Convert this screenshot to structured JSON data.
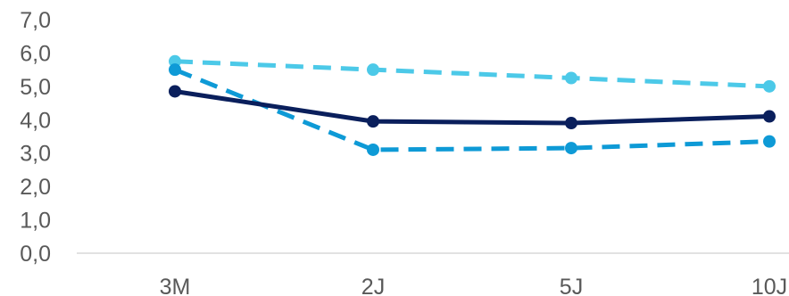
{
  "chart_data": {
    "type": "line",
    "categories": [
      "3M",
      "2J",
      "5J",
      "10J"
    ],
    "y_ticks": [
      "0,0",
      "1,0",
      "2,0",
      "3,0",
      "4,0",
      "5,0",
      "6,0",
      "7,0"
    ],
    "ylim": [
      0,
      7
    ],
    "grid": false,
    "legend": "none",
    "series": [
      {
        "values": [
          5.75,
          5.5,
          5.25,
          5.0
        ],
        "color": "#4CC9E8",
        "line_style": "dashed"
      },
      {
        "values": [
          5.5,
          3.1,
          3.15,
          3.35
        ],
        "color": "#0E9AD6",
        "line_style": "dashed"
      },
      {
        "values": [
          4.85,
          3.95,
          3.9,
          4.1
        ],
        "color": "#0A1F5C",
        "line_style": "solid"
      }
    ]
  }
}
